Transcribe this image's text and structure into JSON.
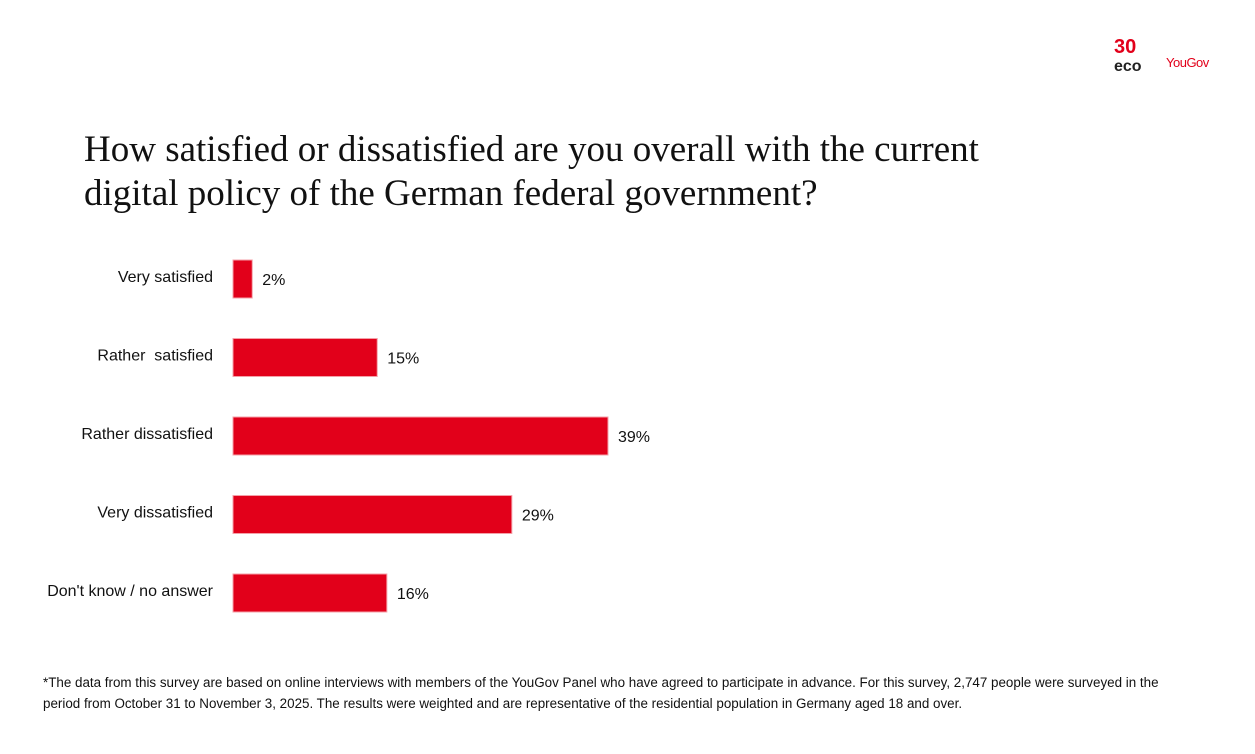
{
  "logos": {
    "badge": "30",
    "eco": "eco",
    "yougov": "YouGov"
  },
  "chart_data": {
    "type": "hbar",
    "title": "How satisfied or dissatisfied are you overall with the current digital policy of the German federal government?",
    "categories": [
      "Very satisfied",
      "Rather  satisfied",
      "Rather dissatisfied",
      "Very dissatisfied",
      "Don't know / no answer"
    ],
    "values": [
      2,
      15,
      39,
      29,
      16
    ],
    "value_labels": [
      "2%",
      "15%",
      "39%",
      "29%",
      "16%"
    ],
    "color": "#e2001a",
    "footnote": "*The data from this survey are based on online interviews with members of the YouGov Panel who have agreed to participate in advance. For this survey, 2,747 people were surveyed in the period from October 31 to November 3, 2025. The results were weighted and are representative of the residential population in Germany aged 18 and over."
  }
}
